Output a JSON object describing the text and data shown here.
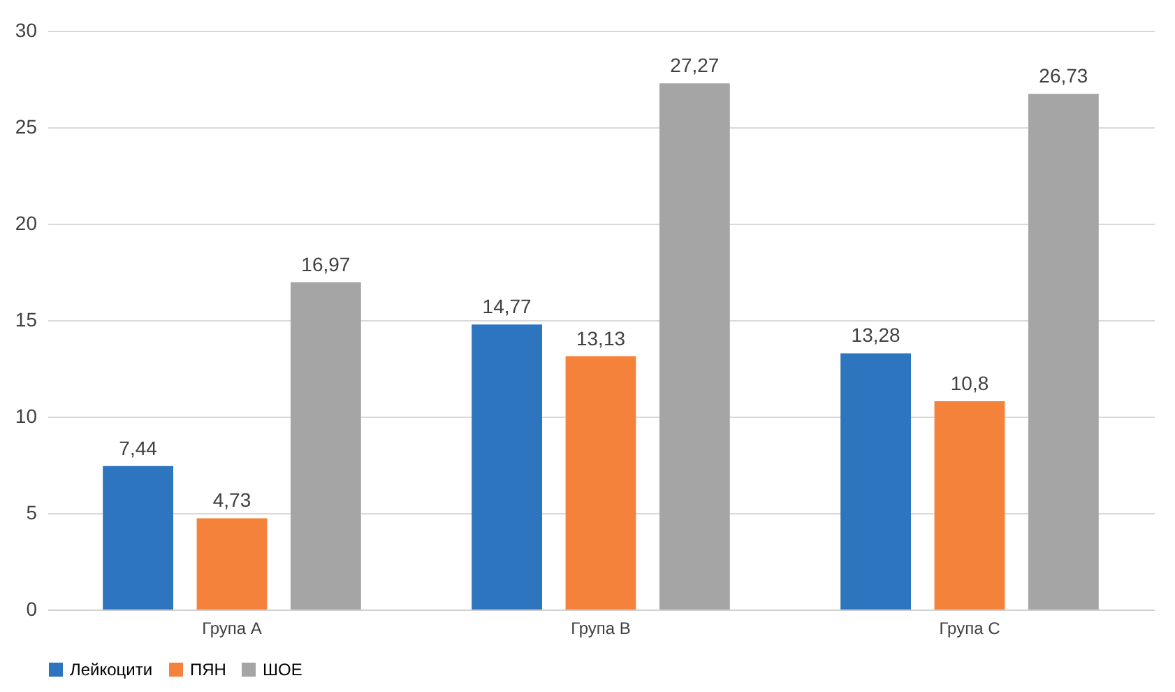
{
  "chart_data": {
    "type": "bar",
    "categories": [
      "Група А",
      "Група В",
      "Група С"
    ],
    "series": [
      {
        "name": "Лейкоцити",
        "color": "#2e75c0",
        "values": [
          7.44,
          14.77,
          13.28
        ],
        "value_labels": [
          "7,44",
          "14,77",
          "13,28"
        ]
      },
      {
        "name": "ПЯН",
        "color": "#f5823a",
        "values": [
          4.73,
          13.13,
          10.8
        ],
        "value_labels": [
          "4,73",
          "13,13",
          "10,8"
        ]
      },
      {
        "name": "ШОЕ",
        "color": "#a5a5a5",
        "values": [
          16.97,
          27.27,
          26.73
        ],
        "value_labels": [
          "16,97",
          "27,27",
          "26,73"
        ]
      }
    ],
    "ylim": [
      0,
      30
    ],
    "yticks": [
      0,
      5,
      10,
      15,
      20,
      25,
      30
    ],
    "grid": "y",
    "legend": "bottom"
  }
}
